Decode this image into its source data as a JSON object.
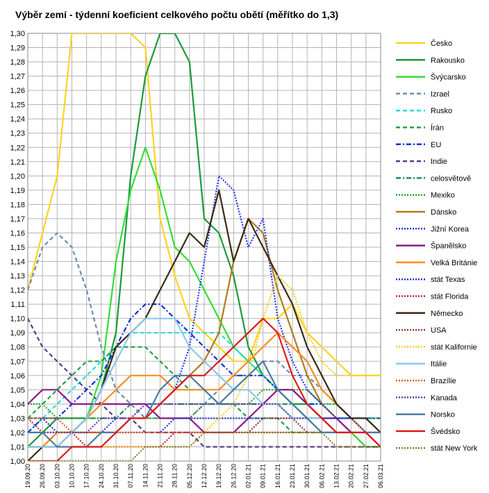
{
  "chart_data": {
    "type": "line",
    "title": "Výběr zemí - týdenní koeficient celkového počtu obětí (měřítko do 1,3)",
    "ylim": [
      1.0,
      1.3
    ],
    "yticks": [
      "1,00",
      "1,01",
      "1,02",
      "1,03",
      "1,04",
      "1,05",
      "1,06",
      "1,07",
      "1,08",
      "1,09",
      "1,10",
      "1,11",
      "1,12",
      "1,13",
      "1,14",
      "1,15",
      "1,16",
      "1,17",
      "1,18",
      "1,19",
      "1,20",
      "1,21",
      "1,22",
      "1,23",
      "1,24",
      "1,25",
      "1,26",
      "1,27",
      "1,28",
      "1,29",
      "1,30"
    ],
    "x_dates": [
      "19.09.20",
      "26.09.20",
      "03.10.20",
      "10.10.20",
      "17.10.20",
      "24.10.20",
      "31.10.20",
      "07.11.20",
      "14.11.20",
      "21.11.20",
      "28.11.20",
      "05.12.20",
      "12.12.20",
      "19.12.20",
      "26.12.20",
      "02.01.21",
      "09.01.21",
      "16.01.21",
      "23.01.21",
      "30.01.21",
      "06.02.21",
      "13.02.21",
      "20.02.21",
      "27.02.21",
      "06.03.21"
    ],
    "grid": true,
    "legend_position": "right",
    "series": [
      {
        "name": "Česko",
        "color": "#ffd320",
        "dash": "solid",
        "values": [
          1.12,
          1.16,
          1.2,
          1.3,
          1.3,
          1.3,
          1.3,
          1.3,
          1.29,
          1.17,
          1.13,
          1.1,
          1.09,
          1.08,
          1.07,
          1.07,
          1.1,
          1.1,
          1.11,
          1.09,
          1.08,
          1.07,
          1.06,
          1.06,
          1.06
        ]
      },
      {
        "name": "Rakousko",
        "color": "#1a9a3a",
        "dash": "solid",
        "values": [
          1.01,
          1.02,
          1.03,
          1.03,
          1.03,
          1.05,
          1.09,
          1.2,
          1.27,
          1.3,
          1.3,
          1.28,
          1.17,
          1.16,
          1.13,
          1.08,
          1.06,
          1.05,
          1.04,
          1.04,
          1.03,
          1.02,
          1.02,
          1.01,
          1.01
        ]
      },
      {
        "name": "Švýcarsko",
        "color": "#33dd33",
        "dash": "solid",
        "values": [
          1.01,
          1.01,
          1.02,
          1.02,
          1.03,
          1.06,
          1.14,
          1.19,
          1.22,
          1.19,
          1.15,
          1.14,
          1.12,
          1.1,
          1.08,
          1.07,
          1.06,
          1.05,
          1.04,
          1.03,
          1.03,
          1.02,
          1.02,
          1.01,
          1.01
        ]
      },
      {
        "name": "Izrael",
        "color": "#6a8db0",
        "dash": "dash",
        "values": [
          1.12,
          1.15,
          1.16,
          1.15,
          1.12,
          1.08,
          1.05,
          1.04,
          1.03,
          1.03,
          1.03,
          1.03,
          1.04,
          1.05,
          1.06,
          1.06,
          1.07,
          1.07,
          1.06,
          1.06,
          1.05,
          1.04,
          1.03,
          1.03,
          1.02
        ]
      },
      {
        "name": "Rusko",
        "color": "#22dddd",
        "dash": "dash",
        "values": [
          1.02,
          1.03,
          1.04,
          1.05,
          1.06,
          1.07,
          1.08,
          1.09,
          1.09,
          1.09,
          1.09,
          1.09,
          1.09,
          1.09,
          1.08,
          1.07,
          1.06,
          1.05,
          1.05,
          1.04,
          1.04,
          1.04,
          1.03,
          1.03,
          1.03
        ]
      },
      {
        "name": "Írán",
        "color": "#1fa040",
        "dash": "dash",
        "values": [
          1.03,
          1.04,
          1.05,
          1.06,
          1.07,
          1.07,
          1.08,
          1.08,
          1.08,
          1.07,
          1.06,
          1.05,
          1.05,
          1.04,
          1.04,
          1.03,
          1.03,
          1.03,
          1.02,
          1.02,
          1.02,
          1.02,
          1.02,
          1.02,
          1.02
        ]
      },
      {
        "name": "EU",
        "color": "#1030dd",
        "dash": "dashdot",
        "values": [
          1.02,
          1.03,
          1.03,
          1.04,
          1.05,
          1.06,
          1.08,
          1.1,
          1.11,
          1.11,
          1.1,
          1.09,
          1.08,
          1.07,
          1.06,
          1.06,
          1.06,
          1.05,
          1.05,
          1.04,
          1.04,
          1.03,
          1.03,
          1.03,
          1.03
        ]
      },
      {
        "name": "Indie",
        "color": "#5a3a8a",
        "dash": "dash",
        "values": [
          1.1,
          1.08,
          1.07,
          1.06,
          1.05,
          1.04,
          1.03,
          1.03,
          1.02,
          1.02,
          1.02,
          1.02,
          1.01,
          1.01,
          1.01,
          1.01,
          1.01,
          1.01,
          1.01,
          1.01,
          1.01,
          1.01,
          1.01,
          1.01,
          1.01
        ]
      },
      {
        "name": "celosvětově",
        "color": "#1a8a6a",
        "dash": "dashdot",
        "values": [
          1.03,
          1.03,
          1.03,
          1.03,
          1.03,
          1.03,
          1.03,
          1.04,
          1.04,
          1.04,
          1.04,
          1.04,
          1.04,
          1.04,
          1.04,
          1.04,
          1.04,
          1.04,
          1.04,
          1.03,
          1.03,
          1.03,
          1.03,
          1.02,
          1.02
        ]
      },
      {
        "name": "Mexiko",
        "color": "#28a428",
        "dash": "dot",
        "values": [
          1.04,
          1.04,
          1.03,
          1.03,
          1.03,
          1.03,
          1.03,
          1.03,
          1.03,
          1.03,
          1.03,
          1.03,
          1.04,
          1.04,
          1.04,
          1.04,
          1.05,
          1.05,
          1.05,
          1.05,
          1.04,
          1.04,
          1.03,
          1.03,
          1.03
        ]
      },
      {
        "name": "Dánsko",
        "color": "#b07a1a",
        "dash": "solid",
        "values": [
          1.01,
          1.01,
          1.02,
          1.02,
          1.02,
          1.02,
          1.02,
          1.03,
          1.03,
          1.04,
          1.05,
          1.06,
          1.07,
          1.09,
          1.14,
          1.17,
          1.16,
          1.12,
          1.09,
          1.06,
          1.04,
          1.03,
          1.02,
          1.02,
          1.01
        ]
      },
      {
        "name": "Jižní Korea",
        "color": "#2233ee",
        "dash": "dot",
        "values": [
          1.02,
          1.02,
          1.02,
          1.02,
          1.02,
          1.02,
          1.03,
          1.03,
          1.04,
          1.04,
          1.05,
          1.08,
          1.14,
          1.2,
          1.19,
          1.15,
          1.17,
          1.1,
          1.07,
          1.05,
          1.04,
          1.03,
          1.03,
          1.02,
          1.02
        ]
      },
      {
        "name": "Španělsko",
        "color": "#8a1a8a",
        "dash": "solid",
        "values": [
          1.04,
          1.05,
          1.05,
          1.04,
          1.04,
          1.04,
          1.04,
          1.04,
          1.04,
          1.03,
          1.03,
          1.03,
          1.02,
          1.02,
          1.02,
          1.03,
          1.04,
          1.05,
          1.05,
          1.04,
          1.03,
          1.03,
          1.02,
          1.02,
          1.02
        ]
      },
      {
        "name": "Velká Británie",
        "color": "#ff8c1a",
        "dash": "solid",
        "values": [
          1.01,
          1.01,
          1.02,
          1.02,
          1.03,
          1.04,
          1.05,
          1.06,
          1.06,
          1.06,
          1.05,
          1.05,
          1.05,
          1.05,
          1.06,
          1.07,
          1.08,
          1.09,
          1.08,
          1.07,
          1.05,
          1.04,
          1.03,
          1.02,
          1.02
        ]
      },
      {
        "name": "stát Texas",
        "color": "#2233cc",
        "dash": "dot",
        "values": [
          1.03,
          1.03,
          1.02,
          1.02,
          1.02,
          1.02,
          1.02,
          1.02,
          1.02,
          1.02,
          1.03,
          1.03,
          1.03,
          1.03,
          1.03,
          1.03,
          1.03,
          1.03,
          1.03,
          1.03,
          1.03,
          1.03,
          1.03,
          1.02,
          1.02
        ]
      },
      {
        "name": "stát Florida",
        "color": "#bb2244",
        "dash": "dot",
        "values": [
          1.03,
          1.02,
          1.02,
          1.02,
          1.01,
          1.01,
          1.01,
          1.01,
          1.01,
          1.01,
          1.02,
          1.02,
          1.02,
          1.02,
          1.02,
          1.02,
          1.02,
          1.02,
          1.02,
          1.02,
          1.02,
          1.02,
          1.02,
          1.02,
          1.02
        ]
      },
      {
        "name": "Německo",
        "color": "#3a2a10",
        "dash": "solid",
        "values": [
          1.0,
          1.01,
          1.01,
          1.02,
          1.03,
          1.05,
          1.08,
          1.09,
          1.1,
          1.12,
          1.14,
          1.16,
          1.15,
          1.19,
          1.14,
          1.17,
          1.15,
          1.13,
          1.11,
          1.08,
          1.06,
          1.04,
          1.03,
          1.03,
          1.02
        ]
      },
      {
        "name": "USA",
        "color": "#8a3a2a",
        "dash": "dot",
        "values": [
          1.02,
          1.02,
          1.02,
          1.02,
          1.02,
          1.02,
          1.02,
          1.02,
          1.02,
          1.02,
          1.02,
          1.02,
          1.02,
          1.02,
          1.02,
          1.02,
          1.03,
          1.03,
          1.03,
          1.02,
          1.02,
          1.02,
          1.02,
          1.02,
          1.01
        ]
      },
      {
        "name": "stát Kalifornie",
        "color": "#ffcc1a",
        "dash": "dot",
        "values": [
          1.01,
          1.01,
          1.01,
          1.01,
          1.01,
          1.01,
          1.01,
          1.01,
          1.01,
          1.01,
          1.01,
          1.01,
          1.02,
          1.03,
          1.04,
          1.06,
          1.1,
          1.13,
          1.12,
          1.09,
          1.07,
          1.06,
          1.06,
          1.06,
          1.06
        ]
      },
      {
        "name": "Itálie",
        "color": "#88c8ee",
        "dash": "solid",
        "values": [
          1.01,
          1.01,
          1.01,
          1.02,
          1.03,
          1.05,
          1.07,
          1.09,
          1.1,
          1.1,
          1.1,
          1.08,
          1.07,
          1.06,
          1.05,
          1.05,
          1.04,
          1.04,
          1.03,
          1.03,
          1.03,
          1.02,
          1.02,
          1.02,
          1.02
        ]
      },
      {
        "name": "Brazílie",
        "color": "#ee5522",
        "dash": "dot",
        "values": [
          1.03,
          1.03,
          1.03,
          1.02,
          1.02,
          1.02,
          1.02,
          1.02,
          1.02,
          1.02,
          1.02,
          1.02,
          1.02,
          1.02,
          1.02,
          1.02,
          1.02,
          1.02,
          1.02,
          1.02,
          1.02,
          1.02,
          1.02,
          1.02,
          1.02
        ]
      },
      {
        "name": "Kanada",
        "color": "#6a3aaa",
        "dash": "dot",
        "values": [
          1.02,
          1.02,
          1.02,
          1.02,
          1.02,
          1.03,
          1.03,
          1.03,
          1.04,
          1.04,
          1.04,
          1.04,
          1.04,
          1.04,
          1.04,
          1.04,
          1.04,
          1.04,
          1.03,
          1.03,
          1.02,
          1.02,
          1.02,
          1.02,
          1.01
        ]
      },
      {
        "name": "Norsko",
        "color": "#4a7ba0",
        "dash": "solid",
        "values": [
          1.02,
          1.02,
          1.01,
          1.01,
          1.01,
          1.02,
          1.02,
          1.03,
          1.03,
          1.05,
          1.06,
          1.06,
          1.05,
          1.04,
          1.05,
          1.06,
          1.07,
          1.05,
          1.04,
          1.03,
          1.02,
          1.02,
          1.02,
          1.02,
          1.02
        ]
      },
      {
        "name": "Švédsko",
        "color": "#dd1a1a",
        "dash": "solid",
        "values": [
          1.0,
          1.0,
          1.0,
          1.01,
          1.01,
          1.01,
          1.02,
          1.03,
          1.03,
          1.04,
          1.05,
          1.06,
          1.06,
          1.07,
          1.08,
          1.09,
          1.1,
          1.09,
          1.06,
          1.04,
          1.03,
          1.02,
          1.02,
          1.02,
          1.01
        ]
      },
      {
        "name": "stát New York",
        "color": "#8a7a1a",
        "dash": "dot",
        "values": [
          1.0,
          1.0,
          1.0,
          1.0,
          1.0,
          1.0,
          1.0,
          1.0,
          1.01,
          1.01,
          1.01,
          1.01,
          1.02,
          1.02,
          1.02,
          1.02,
          1.02,
          1.02,
          1.02,
          1.02,
          1.02,
          1.01,
          1.01,
          1.01,
          1.01
        ]
      }
    ]
  }
}
